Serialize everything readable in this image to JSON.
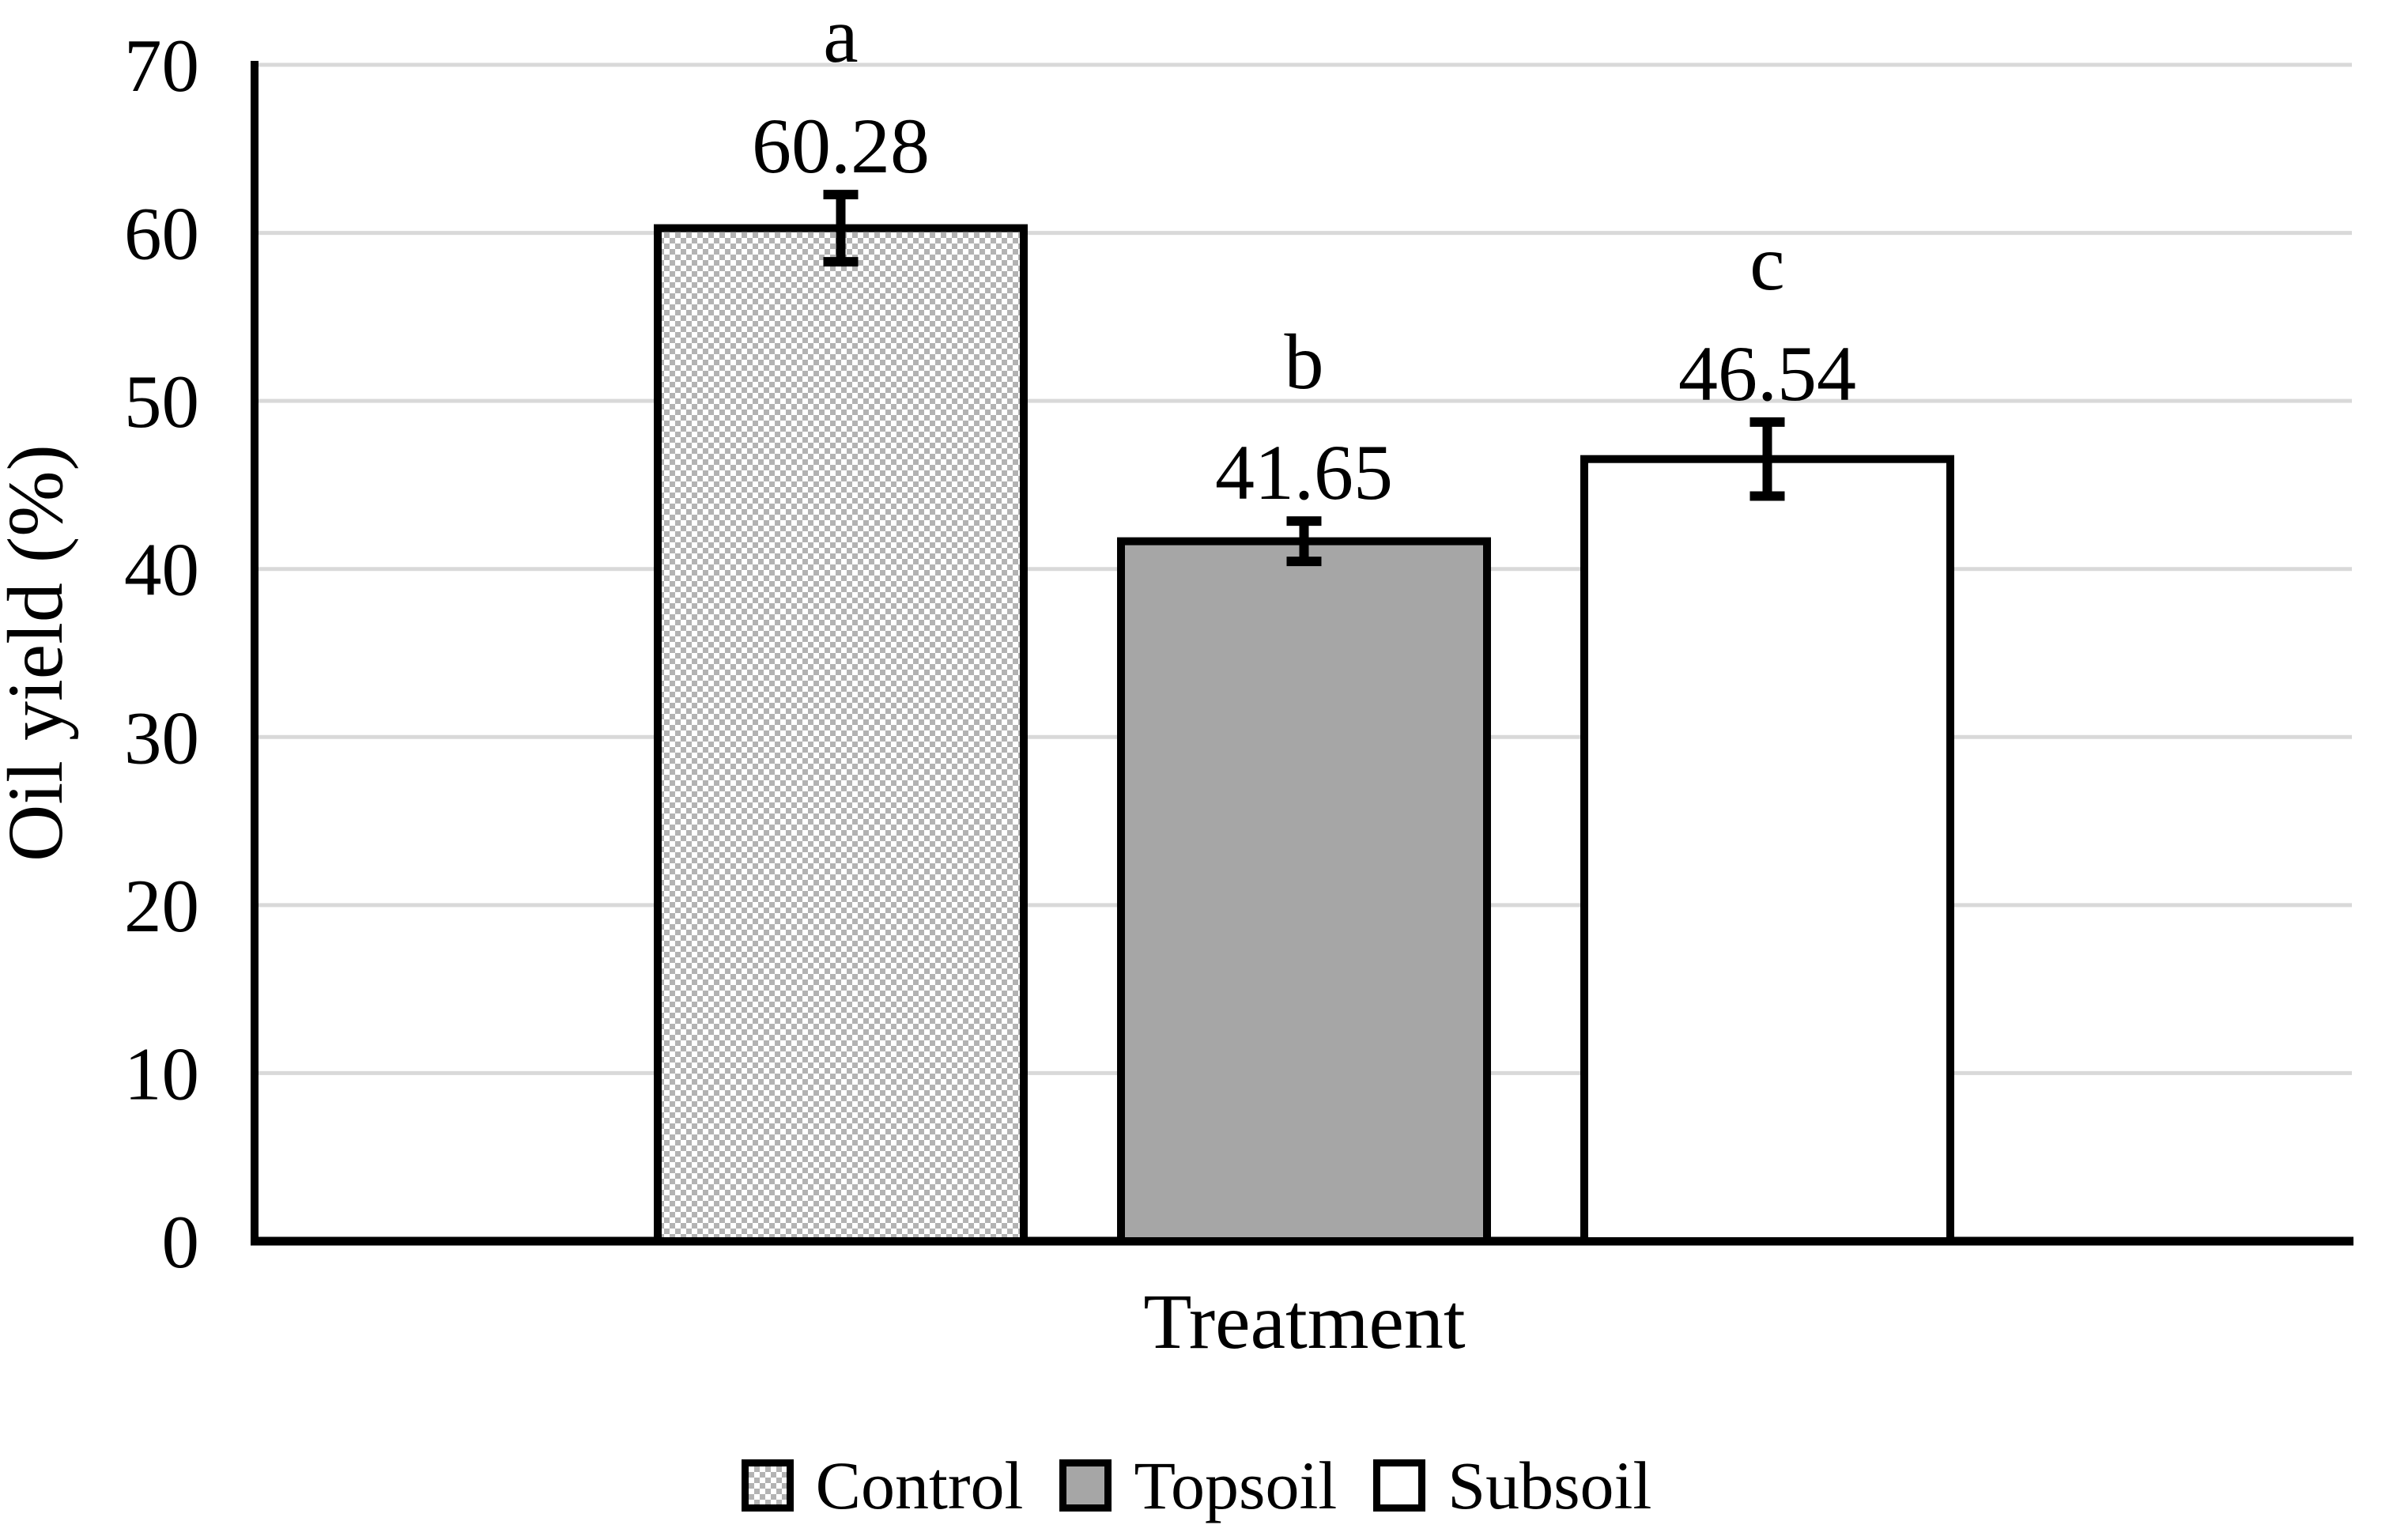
{
  "chart_data": {
    "type": "bar",
    "title": "",
    "xlabel": "Treatment",
    "ylabel": "Oil yield (%)",
    "ylim": [
      0,
      70
    ],
    "yticks": [
      0,
      10,
      20,
      30,
      40,
      50,
      60,
      70
    ],
    "grid": "horizontal",
    "categories": [
      "Control",
      "Topsoil",
      "Subsoil"
    ],
    "values": [
      60.28,
      41.65,
      46.54
    ],
    "value_labels": [
      "60.28",
      "41.65",
      "46.54"
    ],
    "sig_letters": [
      "a",
      "b",
      "c"
    ],
    "errors": [
      2.0,
      1.2,
      2.2
    ],
    "legend": {
      "position": "bottom",
      "entries": [
        {
          "label": "Control",
          "fill": "checker-pattern"
        },
        {
          "label": "Topsoil",
          "fill": "#a6a6a6"
        },
        {
          "label": "Subsoil",
          "fill": "#ffffff"
        }
      ]
    },
    "colors": {
      "grid_line": "#d9d9d9",
      "axis": "#000000",
      "bar_outline": "#000000",
      "topsoil_fill": "#a6a6a6",
      "pattern_dot": "#b3b3b3",
      "background": "#ffffff"
    }
  }
}
